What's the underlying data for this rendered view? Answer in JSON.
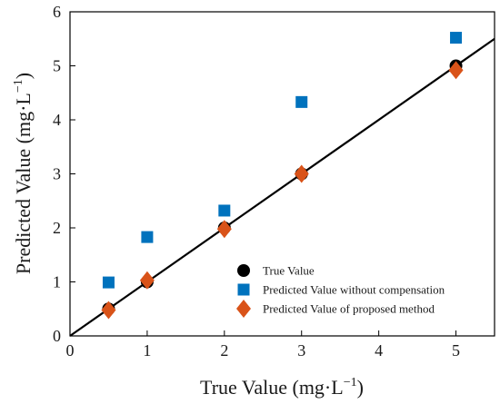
{
  "chart_data": {
    "type": "scatter",
    "xlabel": "True Value (mg·L",
    "ylabel": "Predicted Value (mg·L",
    "unit_exponent": "−1",
    "unit_close": ")",
    "xlim": [
      0,
      5.5
    ],
    "ylim": [
      0,
      6
    ],
    "xticks": [
      0,
      1,
      2,
      3,
      4,
      5
    ],
    "yticks": [
      0,
      1,
      2,
      3,
      4,
      5,
      6
    ],
    "grid": false,
    "legend_position": "bottom-right",
    "reference_line": {
      "x": [
        0,
        5.5
      ],
      "y": [
        0,
        5.5
      ],
      "color": "#000000"
    },
    "series": [
      {
        "name": "True Value",
        "marker": "circle",
        "color": "#000000",
        "x": [
          0.5,
          1,
          2,
          3,
          5
        ],
        "y": [
          0.5,
          1,
          2,
          3,
          5
        ]
      },
      {
        "name": "Predicted Value without compensation",
        "marker": "square",
        "color": "#0072BD",
        "x": [
          0.5,
          1,
          2,
          3,
          5
        ],
        "y": [
          0.99,
          1.83,
          2.32,
          4.33,
          5.52
        ]
      },
      {
        "name": "Predicted Value of proposed method",
        "marker": "diamond",
        "color": "#D95319",
        "x": [
          0.5,
          1,
          2,
          3,
          5
        ],
        "y": [
          0.48,
          1.03,
          1.98,
          3.0,
          4.92
        ]
      }
    ]
  }
}
